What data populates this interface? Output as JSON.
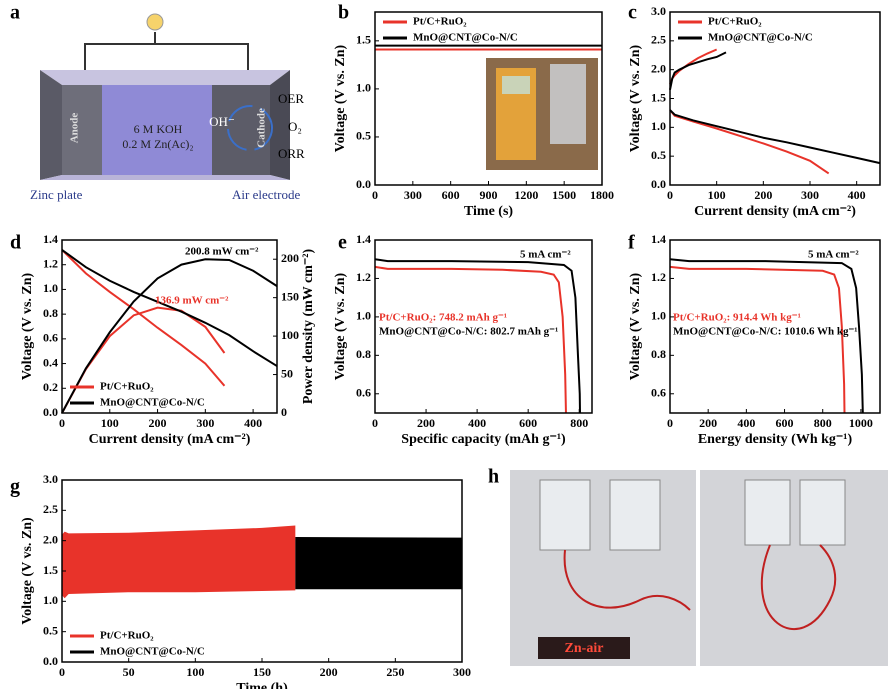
{
  "chart_data": [
    {
      "panel": "b",
      "type": "line",
      "xlabel": "Time (s)",
      "ylabel": "Voltage (V vs. Zn)",
      "xlim": [
        0,
        1800
      ],
      "xticks": [
        0,
        300,
        600,
        900,
        1200,
        1500,
        1800
      ],
      "ylim": [
        0,
        1.8
      ],
      "yticks": [
        {
          "value": 0,
          "label": "0.0"
        },
        0.5,
        {
          "value": 1,
          "label": "1.0"
        },
        1.5
      ],
      "legend": "upper left",
      "series": [
        {
          "name": "Pt/C+RuO₂",
          "color": "#e8332a",
          "x": [
            0,
            1800
          ],
          "values": [
            1.41,
            1.41
          ]
        },
        {
          "name": "MnO@CNT@Co-N/C",
          "color": "#000000",
          "x": [
            0,
            1800
          ],
          "values": [
            1.45,
            1.45
          ]
        }
      ]
    },
    {
      "panel": "c",
      "type": "line",
      "xlabel": "Current density (mA cm⁻²)",
      "ylabel": "Voltage (V vs. Zn)",
      "xlim": [
        0,
        450
      ],
      "xticks": [
        0,
        100,
        200,
        300,
        400
      ],
      "ylim": [
        0,
        3
      ],
      "yticks": [
        {
          "value": 0,
          "label": "0.0"
        },
        0.5,
        {
          "value": 1,
          "label": "1.0"
        },
        1.5,
        {
          "value": 2,
          "label": "2.0"
        },
        2.5,
        {
          "value": 3,
          "label": "3.0"
        }
      ],
      "legend": "upper left",
      "series": [
        {
          "name": "Pt/C+RuO₂",
          "color": "#e8332a",
          "x": [
            0,
            5,
            10,
            20,
            40,
            60,
            80,
            100,
            100,
            0,
            10,
            50,
            100,
            150,
            200,
            250,
            300,
            340
          ],
          "values": [
            1.75,
            1.85,
            1.9,
            1.98,
            2.1,
            2.2,
            2.28,
            2.35,
            null,
            1.3,
            1.2,
            1.1,
            0.98,
            0.85,
            0.72,
            0.58,
            0.42,
            0.2
          ]
        },
        {
          "name": "MnO@CNT@Co-N/C",
          "color": "#000000",
          "x": [
            0,
            5,
            10,
            20,
            40,
            60,
            80,
            100,
            120,
            120,
            0,
            10,
            50,
            100,
            150,
            200,
            250,
            300,
            350,
            400,
            450
          ],
          "values": [
            1.65,
            1.85,
            1.95,
            2.0,
            2.08,
            2.13,
            2.18,
            2.22,
            2.3,
            null,
            1.3,
            1.22,
            1.12,
            1.02,
            0.92,
            0.82,
            0.74,
            0.65,
            0.56,
            0.47,
            0.38
          ]
        }
      ]
    },
    {
      "panel": "d",
      "type": "line",
      "xlabel": "Current density (mA cm⁻²)",
      "ylabel": "Voltage (V vs. Zn)",
      "y2label": "Power density (mW cm⁻²)",
      "xlim": [
        0,
        450
      ],
      "xticks": [
        0,
        100,
        200,
        300,
        400
      ],
      "ylim": [
        0,
        1.4
      ],
      "yticks": [
        {
          "value": 0,
          "label": "0.0"
        },
        0.2,
        0.4,
        0.6,
        0.8,
        {
          "value": 1,
          "label": "1.0"
        },
        1.2,
        1.4
      ],
      "y2lim": [
        0,
        225
      ],
      "y2ticks": [
        0,
        50,
        100,
        150,
        200
      ],
      "legend": "lower left",
      "annotations": [
        {
          "text": "200.8 mW cm⁻²",
          "color": "#000000"
        },
        {
          "text": "136.9 mW cm⁻²",
          "color": "#e8332a"
        }
      ],
      "series": [
        {
          "name": "Pt/C+RuO₂",
          "color": "#e8332a",
          "x": [
            0,
            50,
            100,
            150,
            200,
            250,
            300,
            340
          ],
          "values": [
            1.32,
            1.13,
            0.98,
            0.84,
            0.69,
            0.55,
            0.4,
            0.22
          ],
          "y2_values": [
            0,
            57,
            100,
            127,
            137,
            133,
            112,
            78
          ]
        },
        {
          "name": "MnO@CNT@Co-N/C",
          "color": "#000000",
          "x": [
            0,
            50,
            100,
            150,
            200,
            250,
            300,
            350,
            400,
            450
          ],
          "values": [
            1.32,
            1.18,
            1.07,
            0.98,
            0.9,
            0.82,
            0.73,
            0.63,
            0.5,
            0.38
          ],
          "y2_values": [
            0,
            58,
            105,
            145,
            175,
            193,
            200,
            199,
            185,
            165
          ]
        }
      ]
    },
    {
      "panel": "e",
      "type": "line",
      "xlabel": "Specific capacity (mAh g⁻¹)",
      "ylabel": "Voltage (V vs. Zn)",
      "xlim": [
        0,
        850
      ],
      "xticks": [
        0,
        200,
        400,
        600,
        800
      ],
      "ylim": [
        0.5,
        1.4
      ],
      "yticks": [
        0.6,
        0.8,
        {
          "value": 1,
          "label": "1.0"
        },
        1.2,
        1.4
      ],
      "annotations": [
        {
          "text": "5 mA cm⁻²",
          "color": "#000000"
        },
        {
          "text": "Pt/C+RuO₂: 748.2 mAh g⁻¹",
          "color": "#e8332a"
        },
        {
          "text": "MnO@CNT@Co-N/C: 802.7 mAh g⁻¹",
          "color": "#000000"
        }
      ],
      "series": [
        {
          "color": "#e8332a",
          "x": [
            0,
            50,
            100,
            300,
            500,
            650,
            700,
            720,
            735,
            745,
            748
          ],
          "values": [
            1.26,
            1.25,
            1.25,
            1.25,
            1.245,
            1.235,
            1.22,
            1.18,
            1.0,
            0.7,
            0.5
          ]
        },
        {
          "color": "#000000",
          "x": [
            0,
            50,
            300,
            600,
            740,
            770,
            785,
            795,
            802,
            803
          ],
          "values": [
            1.3,
            1.29,
            1.29,
            1.285,
            1.27,
            1.24,
            1.1,
            0.8,
            0.6,
            0.5
          ]
        }
      ]
    },
    {
      "panel": "f",
      "type": "line",
      "xlabel": "Energy density (Wh kg⁻¹)",
      "ylabel": "Voltage (V vs. Zn)",
      "xlim": [
        0,
        1100
      ],
      "xticks": [
        0,
        200,
        400,
        600,
        800,
        1000
      ],
      "ylim": [
        0.5,
        1.4
      ],
      "yticks": [
        0.6,
        0.8,
        {
          "value": 1,
          "label": "1.0"
        },
        1.2,
        1.4
      ],
      "annotations": [
        {
          "text": "5 mA cm⁻²",
          "color": "#000000"
        },
        {
          "text": "Pt/C+RuO₂: 914.4 Wh kg⁻¹",
          "color": "#e8332a"
        },
        {
          "text": "MnO@CNT@Co-N/C: 1010.6 Wh kg⁻¹",
          "color": "#000000"
        }
      ],
      "series": [
        {
          "color": "#e8332a",
          "x": [
            0,
            100,
            400,
            800,
            860,
            885,
            900,
            912,
            914
          ],
          "values": [
            1.26,
            1.25,
            1.25,
            1.24,
            1.22,
            1.15,
            0.95,
            0.65,
            0.5
          ]
        },
        {
          "color": "#000000",
          "x": [
            0,
            100,
            500,
            900,
            950,
            975,
            990,
            1005,
            1010
          ],
          "values": [
            1.3,
            1.29,
            1.29,
            1.28,
            1.25,
            1.15,
            0.95,
            0.7,
            0.5
          ]
        }
      ]
    },
    {
      "panel": "g",
      "type": "area",
      "xlabel": "Time (h)",
      "ylabel": "Voltage (V vs. Zn)",
      "xlim": [
        0,
        300
      ],
      "xticks": [
        0,
        50,
        100,
        150,
        200,
        250,
        300
      ],
      "ylim": [
        0,
        3
      ],
      "yticks": [
        {
          "value": 0,
          "label": "0.0"
        },
        0.5,
        {
          "value": 1,
          "label": "1.0"
        },
        1.5,
        {
          "value": 2,
          "label": "2.0"
        },
        2.5,
        {
          "value": 3,
          "label": "3.0"
        }
      ],
      "legend": "lower left",
      "series": [
        {
          "name": "Pt/C+RuO₂",
          "color": "#e8332a",
          "x": [
            0,
            2,
            5,
            50,
            100,
            150,
            175
          ],
          "values": [
            2.1,
            2.15,
            2.12,
            2.13,
            2.17,
            2.21,
            2.25
          ],
          "lower": [
            1.1,
            1.05,
            1.12,
            1.15,
            1.15,
            1.17,
            1.18
          ]
        },
        {
          "name": "MnO@CNT@Co-N/C",
          "color": "#000000",
          "x": [
            175,
            300
          ],
          "values": [
            2.06,
            2.05
          ],
          "lower": [
            1.2,
            1.2
          ]
        }
      ]
    }
  ],
  "schematic": {
    "panel": "a",
    "anode": "Anode",
    "cathode": "Cathode",
    "electrolyte": [
      "6 M KOH",
      "0.2 M Zn(Ac)₂"
    ],
    "ion": "OH⁻",
    "gas": "O₂",
    "oer": "OER",
    "orr": "ORR",
    "left_label": "Zinc plate",
    "right_label": "Air electrode"
  },
  "photo": {
    "panel": "h",
    "led": "Zn-air"
  }
}
